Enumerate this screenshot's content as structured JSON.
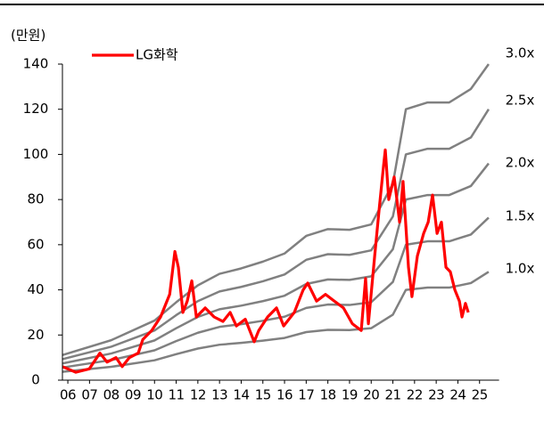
{
  "chart_data": {
    "type": "line",
    "y_label": "(만원)",
    "xlim": [
      2005.75,
      2025.9
    ],
    "xticks": [
      {
        "value": 2006,
        "label": "06"
      },
      {
        "value": 2007,
        "label": "07"
      },
      {
        "value": 2008,
        "label": "08"
      },
      {
        "value": 2009,
        "label": "09"
      },
      {
        "value": 2010,
        "label": "10"
      },
      {
        "value": 2011,
        "label": "11"
      },
      {
        "value": 2012,
        "label": "12"
      },
      {
        "value": 2013,
        "label": "13"
      },
      {
        "value": 2014,
        "label": "14"
      },
      {
        "value": 2015,
        "label": "15"
      },
      {
        "value": 2016,
        "label": "16"
      },
      {
        "value": 2017,
        "label": "17"
      },
      {
        "value": 2018,
        "label": "18"
      },
      {
        "value": 2019,
        "label": "19"
      },
      {
        "value": 2020,
        "label": "20"
      },
      {
        "value": 2021,
        "label": "21"
      },
      {
        "value": 2022,
        "label": "22"
      },
      {
        "value": 2023,
        "label": "23"
      },
      {
        "value": 2024,
        "label": "24"
      },
      {
        "value": 2025,
        "label": "25"
      }
    ],
    "ylim": [
      0,
      140
    ],
    "yticks": [
      0,
      20,
      40,
      60,
      80,
      100,
      120,
      140
    ],
    "legend": "top-left",
    "series": [
      {
        "name": "3.0x",
        "color": "#808080",
        "band": true,
        "x": [
          2005.75,
          2008,
          2010,
          2011,
          2012,
          2013,
          2014,
          2015,
          2016,
          2017,
          2018,
          2019,
          2020,
          2021,
          2021.6,
          2022.6,
          2023.6,
          2024.6,
          2025.42
        ],
        "values": [
          11.1,
          17.7,
          26.4,
          34.5,
          42,
          47.1,
          49.5,
          52.5,
          56.1,
          63.9,
          66.9,
          66.6,
          69,
          87,
          120,
          123,
          123,
          129,
          140
        ]
      },
      {
        "name": "2.5x",
        "color": "#808080",
        "band": true,
        "x": [
          2005.75,
          2008,
          2010,
          2011,
          2012,
          2013,
          2014,
          2015,
          2016,
          2017,
          2018,
          2019,
          2020,
          2021,
          2021.6,
          2022.6,
          2023.6,
          2024.6,
          2025.42
        ],
        "values": [
          9.3,
          14.8,
          22,
          28.8,
          35,
          39.3,
          41.3,
          43.8,
          46.8,
          53.3,
          55.8,
          55.5,
          57.5,
          72.5,
          100,
          102.5,
          102.5,
          107.5,
          120
        ]
      },
      {
        "name": "2.0x",
        "color": "#808080",
        "band": true,
        "x": [
          2005.75,
          2008,
          2010,
          2011,
          2012,
          2013,
          2014,
          2015,
          2016,
          2017,
          2018,
          2019,
          2020,
          2021,
          2021.6,
          2022.6,
          2023.6,
          2024.6,
          2025.42
        ],
        "values": [
          7.4,
          11.8,
          17.6,
          23,
          28,
          31.4,
          33,
          35,
          37.4,
          42.6,
          44.6,
          44.4,
          46,
          58,
          80,
          82,
          82,
          86,
          96
        ]
      },
      {
        "name": "1.5x",
        "color": "#808080",
        "band": true,
        "x": [
          2005.75,
          2008,
          2010,
          2011,
          2012,
          2013,
          2014,
          2015,
          2016,
          2017,
          2018,
          2019,
          2020,
          2021,
          2021.6,
          2022.6,
          2023.6,
          2024.6,
          2025.42
        ],
        "values": [
          5.6,
          8.9,
          13.2,
          17.3,
          21,
          23.6,
          24.8,
          26.3,
          28.1,
          32,
          33.5,
          33.3,
          34.5,
          43.5,
          60,
          61.5,
          61.5,
          64.5,
          72
        ]
      },
      {
        "name": "1.0x",
        "color": "#808080",
        "band": true,
        "x": [
          2005.75,
          2008,
          2010,
          2011,
          2012,
          2013,
          2014,
          2015,
          2016,
          2017,
          2018,
          2019,
          2020,
          2021,
          2021.6,
          2022.6,
          2023.6,
          2024.6,
          2025.42
        ],
        "values": [
          3.7,
          5.9,
          8.8,
          11.5,
          14,
          15.7,
          16.5,
          17.5,
          18.7,
          21.3,
          22.3,
          22.2,
          23,
          29,
          40,
          41,
          41,
          43,
          48
        ]
      },
      {
        "name": "LG화학",
        "color": "#ff0000",
        "band": false,
        "x": [
          2005.75,
          2006.37,
          2006.99,
          2007.48,
          2007.81,
          2008.22,
          2008.51,
          2008.84,
          2009.25,
          2009.46,
          2009.87,
          2010.28,
          2010.7,
          2010.94,
          2011.1,
          2011.31,
          2011.51,
          2011.72,
          2011.93,
          2012.34,
          2012.75,
          2013.16,
          2013.49,
          2013.78,
          2014.19,
          2014.6,
          2014.81,
          2015.22,
          2015.63,
          2015.96,
          2016.45,
          2016.86,
          2017.07,
          2017.48,
          2017.89,
          2018.3,
          2018.72,
          2019.13,
          2019.54,
          2019.74,
          2019.87,
          2020.16,
          2020.36,
          2020.57,
          2020.65,
          2020.81,
          2021.06,
          2021.31,
          2021.47,
          2021.72,
          2021.88,
          2022.13,
          2022.42,
          2022.63,
          2022.83,
          2023.04,
          2023.24,
          2023.45,
          2023.65,
          2023.86,
          2024.07,
          2024.19,
          2024.35,
          2024.48
        ],
        "values": [
          6,
          3.5,
          5,
          12,
          8,
          10,
          6,
          10,
          12,
          18,
          22,
          28,
          38,
          57,
          50,
          30,
          35,
          44,
          28,
          32,
          28,
          26,
          30,
          24,
          27,
          17,
          22,
          28,
          32,
          24,
          30,
          40,
          43,
          35,
          38,
          35,
          32,
          25,
          22,
          45,
          25,
          55,
          75,
          95,
          102,
          80,
          90,
          70,
          88,
          50,
          37,
          55,
          65,
          70,
          82,
          65,
          70,
          50,
          48,
          40,
          35,
          28,
          34,
          30
        ]
      }
    ]
  }
}
